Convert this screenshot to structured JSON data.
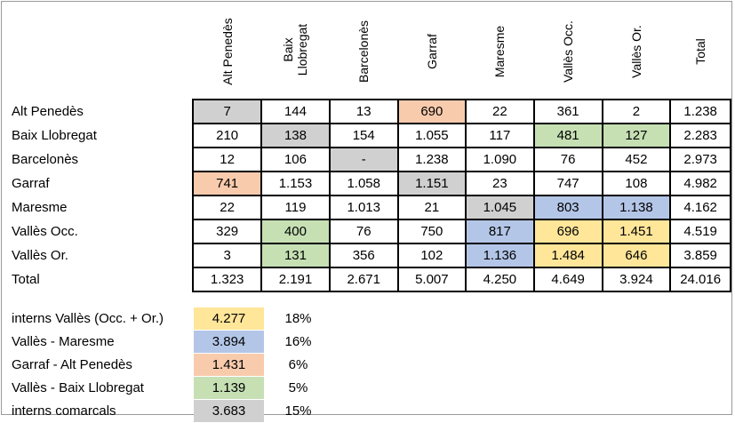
{
  "columns": [
    "Alt Penedès",
    "Baix Llobregat",
    "Barcelonès",
    "Garraf",
    "Maresme",
    "Vallès Occ.",
    "Vallès Or.",
    "Total"
  ],
  "column_headers_display": [
    [
      "Alt Penedès"
    ],
    [
      "Baix",
      "Llobregat"
    ],
    [
      "Barcelonès"
    ],
    [
      "Garraf"
    ],
    [
      "Maresme"
    ],
    [
      "Vallès Occ."
    ],
    [
      "Vallès Or."
    ],
    [
      "Total"
    ]
  ],
  "rows": [
    {
      "label": "Alt Penedès",
      "values": [
        "7",
        "144",
        "13",
        "690",
        "22",
        "361",
        "2",
        "1.238"
      ],
      "colors": [
        "gray",
        "",
        "",
        "orange",
        "",
        "",
        "",
        ""
      ]
    },
    {
      "label": "Baix Llobregat",
      "values": [
        "210",
        "138",
        "154",
        "1.055",
        "117",
        "481",
        "127",
        "2.283"
      ],
      "colors": [
        "",
        "gray",
        "",
        "",
        "",
        "green",
        "green",
        ""
      ]
    },
    {
      "label": "Barcelonès",
      "values": [
        "12",
        "106",
        "-",
        "1.238",
        "1.090",
        "76",
        "452",
        "2.973"
      ],
      "colors": [
        "",
        "",
        "gray",
        "",
        "",
        "",
        "",
        ""
      ]
    },
    {
      "label": "Garraf",
      "values": [
        "741",
        "1.153",
        "1.058",
        "1.151",
        "23",
        "747",
        "108",
        "4.982"
      ],
      "colors": [
        "orange",
        "",
        "",
        "gray",
        "",
        "",
        "",
        ""
      ]
    },
    {
      "label": "Maresme",
      "values": [
        "22",
        "119",
        "1.013",
        "21",
        "1.045",
        "803",
        "1.138",
        "4.162"
      ],
      "colors": [
        "",
        "",
        "",
        "",
        "gray",
        "blue",
        "blue",
        ""
      ]
    },
    {
      "label": "Vallès Occ.",
      "values": [
        "329",
        "400",
        "76",
        "750",
        "817",
        "696",
        "1.451",
        "4.519"
      ],
      "colors": [
        "",
        "green",
        "",
        "",
        "blue",
        "yellow",
        "yellow",
        ""
      ]
    },
    {
      "label": "Vallès Or.",
      "values": [
        "3",
        "131",
        "356",
        "102",
        "1.136",
        "1.484",
        "646",
        "3.859"
      ],
      "colors": [
        "",
        "green",
        "",
        "",
        "blue",
        "yellow",
        "yellow",
        ""
      ]
    },
    {
      "label": "Total",
      "values": [
        "1.323",
        "2.191",
        "2.671",
        "5.007",
        "4.250",
        "4.649",
        "3.924",
        "24.016"
      ],
      "colors": [
        "",
        "",
        "",
        "",
        "",
        "",
        "",
        ""
      ]
    }
  ],
  "summary": [
    {
      "label": "interns Vallès (Occ. + Or.)",
      "value": "4.277",
      "percent": "18%",
      "color": "yellow"
    },
    {
      "label": "Vallès - Maresme",
      "value": "3.894",
      "percent": "16%",
      "color": "blue"
    },
    {
      "label": "Garraf  - Alt Penedès",
      "value": "1.431",
      "percent": "6%",
      "color": "orange"
    },
    {
      "label": "Vallès - Baix Llobregat",
      "value": "1.139",
      "percent": "5%",
      "color": "green"
    },
    {
      "label": "interns comarcals",
      "value": "3.683",
      "percent": "15%",
      "color": "gray"
    }
  ],
  "palette": {
    "gray": "#d0d0d0",
    "orange": "#f8cbad",
    "green": "#c6e0b4",
    "blue": "#b4c6e7",
    "yellow": "#ffe699"
  }
}
